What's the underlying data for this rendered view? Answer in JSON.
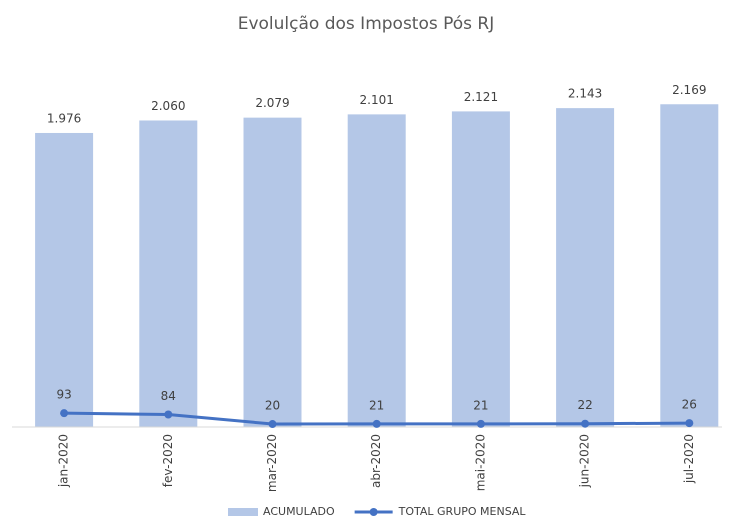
{
  "chart_data": {
    "type": "bar",
    "title": "Evolulção dos Impostos Pós RJ",
    "categories": [
      "jan-2020",
      "fev-2020",
      "mar-2020",
      "abr-2020",
      "mai-2020",
      "jun-2020",
      "jul-2020"
    ],
    "series": [
      {
        "name": "ACUMULADO",
        "type": "bar",
        "color": "#b4c7e7",
        "values": [
          1976,
          2060,
          2079,
          2101,
          2121,
          2143,
          2169
        ],
        "value_labels": [
          "1.976",
          "2.060",
          "2.079",
          "2.101",
          "2.121",
          "2.143",
          "2.169"
        ]
      },
      {
        "name": "TOTAL GRUPO MENSAL",
        "type": "line",
        "color": "#4472c4",
        "values": [
          93,
          84,
          20,
          21,
          21,
          22,
          26
        ]
      }
    ],
    "ylim": [
      0,
      2500
    ],
    "legend": "bottom"
  }
}
